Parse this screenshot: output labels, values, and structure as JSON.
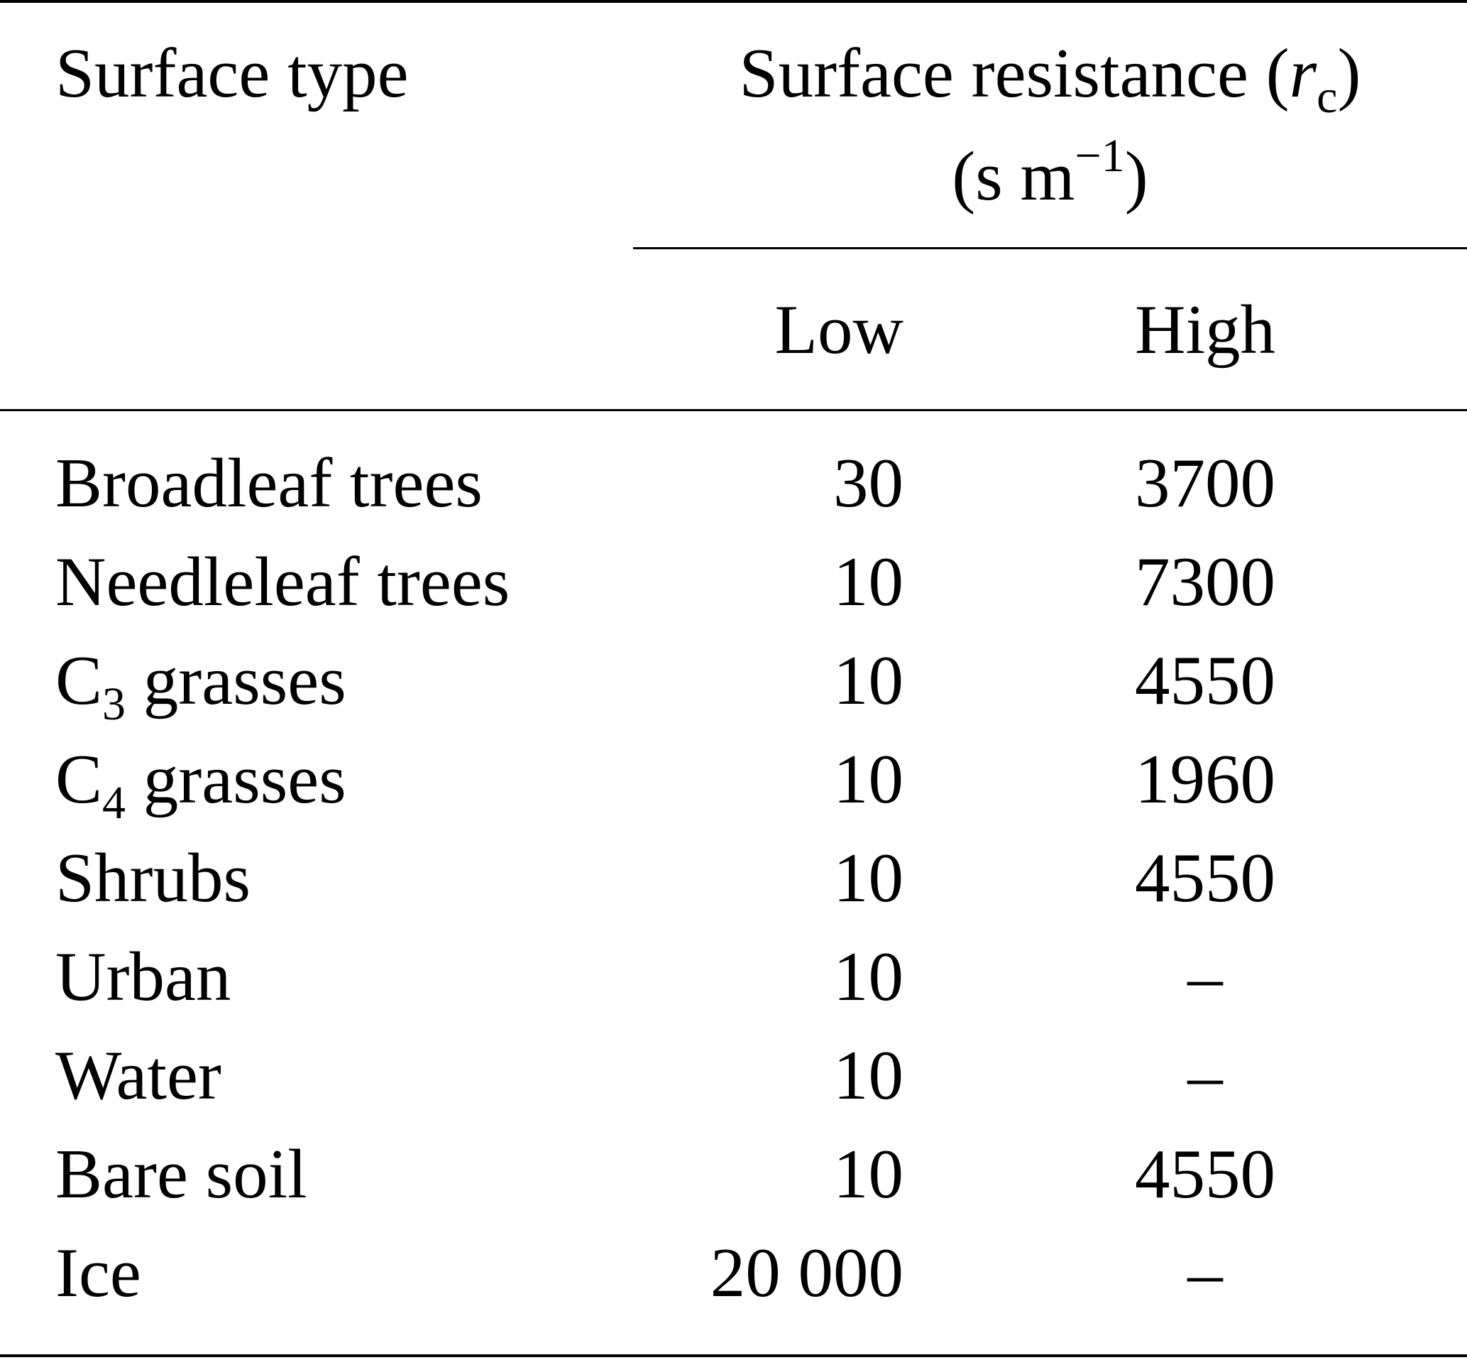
{
  "table": {
    "header": {
      "surface_type": "Surface type",
      "resistance_title": "Surface resistance (",
      "resistance_symbol": "r",
      "resistance_symbol_sub": "c",
      "resistance_close": ")",
      "units_open": "(s m",
      "units_exponent": "−1",
      "units_close": ")",
      "low": "Low",
      "high": "High"
    },
    "rows": [
      {
        "label": "Broadleaf trees",
        "low": "30",
        "high": "3700"
      },
      {
        "label": "Needleleaf trees",
        "low": "10",
        "high": "7300"
      },
      {
        "label_prefix": "C",
        "label_sub": "3",
        "label_suffix": " grasses",
        "low": "10",
        "high": "4550"
      },
      {
        "label_prefix": "C",
        "label_sub": "4",
        "label_suffix": " grasses",
        "low": "10",
        "high": "1960"
      },
      {
        "label": "Shrubs",
        "low": "10",
        "high": "4550"
      },
      {
        "label": "Urban",
        "low": "10",
        "high": "–"
      },
      {
        "label": "Water",
        "low": "10",
        "high": "–"
      },
      {
        "label": "Bare soil",
        "low": "10",
        "high": "4550"
      },
      {
        "label": "Ice",
        "low": "20 000",
        "high": "–"
      }
    ]
  }
}
